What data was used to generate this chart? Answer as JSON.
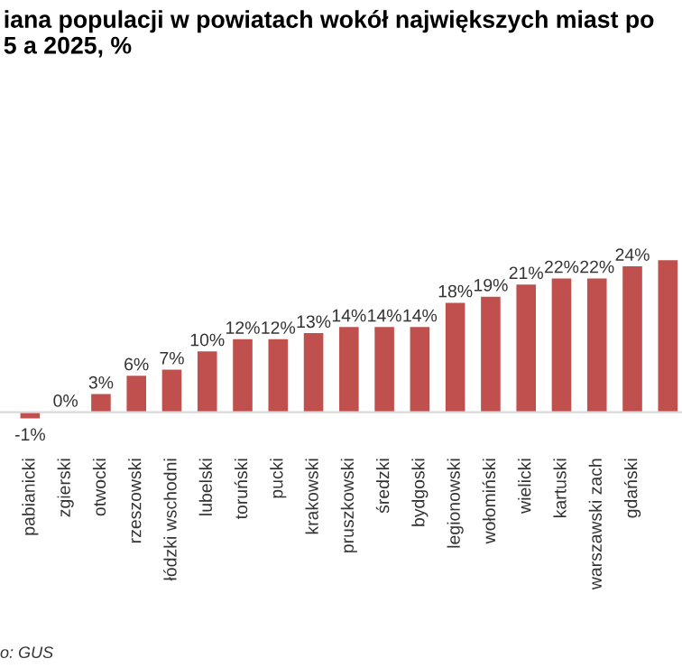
{
  "chart_data": {
    "type": "bar",
    "title": "iana populacji w powiatach wokół największych miast po\n5 a 2025, %",
    "categories": [
      "pabianicki",
      "zgierski",
      "otwocki",
      "rzeszowski",
      "łódzki wschodni",
      "lubelski",
      "toruński",
      "pucki",
      "krakowski",
      "pruszkowski",
      "średzki",
      "bydgoski",
      "legionowski",
      "wołomiński",
      "wielicki",
      "kartuski",
      "warszawski zach",
      "gdański",
      null
    ],
    "values": [
      -1,
      0,
      3,
      6,
      7,
      10,
      12,
      12,
      13,
      14,
      14,
      14,
      18,
      19,
      21,
      22,
      22,
      24,
      25
    ],
    "value_labels": [
      "-1%",
      "0%",
      "3%",
      "6%",
      "7%",
      "10%",
      "12%",
      "12%",
      "13%",
      "14%",
      "14%",
      "14%",
      "18%",
      "19%",
      "21%",
      "22%",
      "22%",
      "24%",
      null
    ],
    "colors": [
      "#c0504d",
      "#d9d9d9",
      "#c0504d",
      "#c0504d",
      "#c0504d",
      "#c0504d",
      "#c0504d",
      "#c0504d",
      "#c0504d",
      "#c0504d",
      "#c0504d",
      "#c0504d",
      "#c0504d",
      "#c0504d",
      "#c0504d",
      "#c0504d",
      "#c0504d",
      "#c0504d",
      "#c0504d"
    ],
    "annotations": [
      "o: GUS"
    ]
  }
}
